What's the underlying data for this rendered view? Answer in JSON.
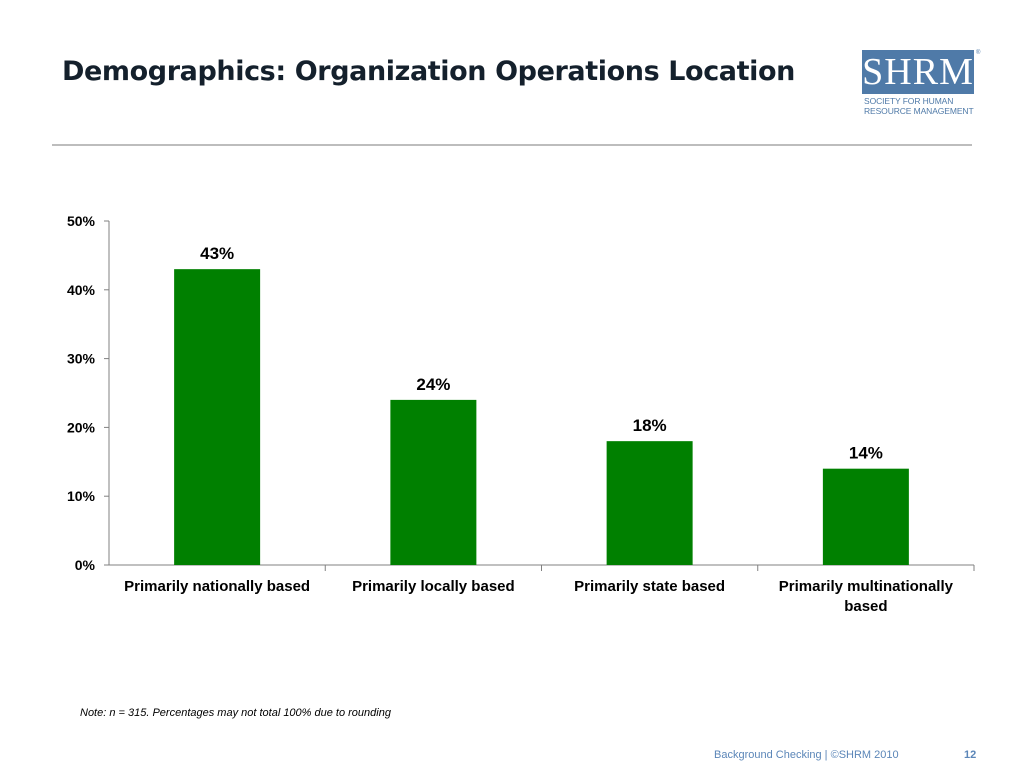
{
  "title": "Demographics: Organization Operations Location",
  "logo": {
    "mark": "SHRM",
    "registered": "®",
    "subtitle": "SOCIETY FOR HUMAN\nRESOURCE MANAGEMENT",
    "color": "#4f7aa8"
  },
  "chart_data": {
    "type": "bar",
    "categories": [
      "Primarily nationally based",
      "Primarily locally based",
      "Primarily state based",
      "Primarily multinationally based"
    ],
    "category_label_lines": [
      [
        "Primarily nationally based"
      ],
      [
        "Primarily locally based"
      ],
      [
        "Primarily state based"
      ],
      [
        "Primarily multinationally",
        "based"
      ]
    ],
    "values": [
      43,
      24,
      18,
      14
    ],
    "data_labels": [
      "43%",
      "24%",
      "18%",
      "14%"
    ],
    "y_ticks": [
      0,
      10,
      20,
      30,
      40,
      50
    ],
    "y_tick_labels": [
      "0%",
      "10%",
      "20%",
      "30%",
      "40%",
      "50%"
    ],
    "ylim": [
      0,
      50
    ],
    "bar_color": "#008000",
    "grid": false,
    "legend": "none"
  },
  "note": "Note: n = 315. Percentages may not total 100% due to rounding",
  "footer": {
    "text": "Background Checking | ©SHRM 2010",
    "page_number": "12",
    "color": "#5b86b8"
  }
}
